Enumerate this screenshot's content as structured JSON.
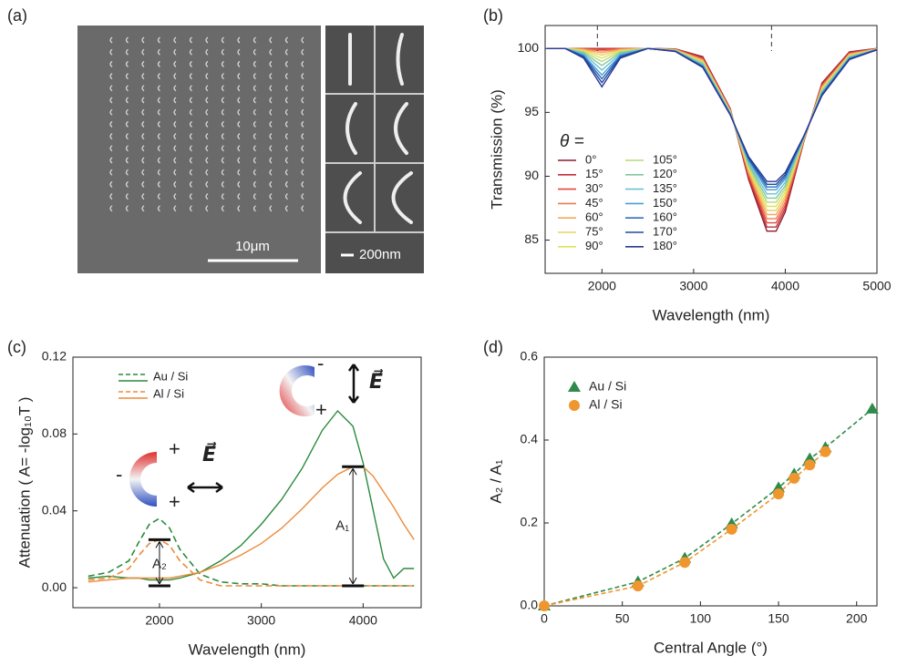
{
  "panel_labels": [
    "(a)",
    "(b)",
    "(c)",
    "(d)"
  ],
  "image_panel": {
    "scale_bar_main": "10μm",
    "scale_bar_inset": "200nm"
  },
  "chart_data": [
    {
      "type": "line",
      "xlabel": "Wavelength (nm)",
      "ylabel": "Transmission (%)",
      "legend_title": "θ =",
      "x": [
        1400,
        1600,
        1800,
        2000,
        2200,
        2500,
        2800,
        3100,
        3400,
        3600,
        3800,
        3900,
        4000,
        4200,
        4400,
        4700,
        5000
      ],
      "xlim": [
        1380,
        5000
      ],
      "xticks": [
        2000,
        3000,
        4000,
        5000
      ],
      "ylim": [
        82.4,
        101.8
      ],
      "yticks": [
        85,
        90,
        95,
        100
      ],
      "reference_lines_x": [
        1950,
        3850
      ],
      "series": [
        {
          "name": "0°",
          "color": "#8e1b2e",
          "values": [
            100,
            100,
            100,
            100,
            100,
            100,
            99.97,
            99.36,
            95.29,
            89.75,
            85.7,
            85.7,
            87.21,
            92.66,
            97.3,
            99.74,
            100
          ]
        },
        {
          "name": "15°",
          "color": "#c0303a",
          "values": [
            100,
            100,
            99.99,
            99.98,
            99.99,
            100,
            99.95,
            99.29,
            95.25,
            89.9,
            86.02,
            86.02,
            87.47,
            92.7,
            97.22,
            99.69,
            99.99
          ]
        },
        {
          "name": "30°",
          "color": "#e2463e",
          "values": [
            100,
            100,
            99.98,
            99.92,
            99.98,
            100,
            99.94,
            99.22,
            95.21,
            90.05,
            86.35,
            86.35,
            87.72,
            92.74,
            97.13,
            99.64,
            99.98
          ]
        },
        {
          "name": "45°",
          "color": "#f07a4c",
          "values": [
            100,
            100,
            99.95,
            99.81,
            99.95,
            100,
            99.92,
            99.15,
            95.16,
            90.2,
            86.67,
            86.67,
            87.98,
            92.78,
            97.05,
            99.59,
            99.97
          ]
        },
        {
          "name": "60°",
          "color": "#f5a95c",
          "values": [
            100,
            100,
            99.92,
            99.67,
            99.92,
            100,
            99.9,
            99.08,
            95.12,
            90.35,
            87,
            87,
            88.24,
            92.82,
            96.97,
            99.54,
            99.96
          ]
        },
        {
          "name": "75°",
          "color": "#ecd062",
          "values": [
            100,
            100,
            99.87,
            99.48,
            99.87,
            100,
            99.89,
            99.01,
            95.08,
            90.5,
            87.32,
            87.32,
            88.49,
            92.86,
            96.89,
            99.49,
            99.95
          ]
        },
        {
          "name": "90°",
          "color": "#dce45a",
          "values": [
            100,
            100,
            99.81,
            99.25,
            99.81,
            100,
            99.87,
            98.93,
            95.04,
            90.64,
            87.64,
            87.64,
            88.75,
            92.9,
            96.81,
            99.44,
            99.95
          ]
        },
        {
          "name": "105°",
          "color": "#b6d87a",
          "values": [
            100,
            100,
            99.74,
            98.98,
            99.74,
            100,
            99.85,
            98.86,
            95,
            90.79,
            87.97,
            87.97,
            89.01,
            92.93,
            96.72,
            99.39,
            99.94
          ]
        },
        {
          "name": "120°",
          "color": "#7fc8a2",
          "values": [
            100,
            100,
            99.67,
            98.67,
            99.67,
            100,
            99.84,
            98.79,
            94.96,
            90.94,
            88.29,
            88.29,
            89.26,
            92.97,
            96.64,
            99.34,
            99.93
          ]
        },
        {
          "name": "135°",
          "color": "#6cc0d2",
          "values": [
            100,
            100,
            99.58,
            98.31,
            99.58,
            100,
            99.82,
            98.72,
            94.91,
            91.09,
            88.62,
            88.62,
            89.52,
            93.01,
            96.56,
            99.29,
            99.92
          ]
        },
        {
          "name": "150°",
          "color": "#4c9fd8",
          "values": [
            100,
            100,
            99.48,
            97.92,
            99.48,
            100,
            99.8,
            98.65,
            94.87,
            91.24,
            88.94,
            88.94,
            89.78,
            93.05,
            96.48,
            99.24,
            99.91
          ]
        },
        {
          "name": "160°",
          "color": "#2f6fc0",
          "values": [
            100,
            100,
            99.41,
            97.63,
            99.41,
            100,
            99.79,
            98.6,
            94.85,
            91.34,
            89.16,
            89.16,
            89.95,
            93.08,
            96.42,
            99.21,
            99.9
          ]
        },
        {
          "name": "170°",
          "color": "#1c4e9e",
          "values": [
            100,
            100,
            99.33,
            97.33,
            99.33,
            100,
            99.78,
            98.56,
            94.82,
            91.44,
            89.37,
            89.37,
            90.12,
            93.1,
            96.37,
            99.17,
            99.9
          ]
        },
        {
          "name": "180°",
          "color": "#2b3896",
          "values": [
            100,
            100,
            99.25,
            97,
            99.25,
            100,
            99.77,
            98.51,
            94.79,
            91.54,
            89.59,
            89.59,
            90.29,
            93.13,
            96.31,
            99.14,
            99.89
          ]
        }
      ]
    },
    {
      "type": "line",
      "xlabel": "Wavelength (nm)",
      "ylabel": "Attenuation ( A= -log₁₀T )",
      "x": [
        1300,
        1500,
        1700,
        1800,
        1900,
        2000,
        2100,
        2200,
        2400,
        2600,
        2800,
        3000,
        3200,
        3400,
        3600,
        3750,
        3900,
        4000,
        4100,
        4200,
        4300,
        4400,
        4500
      ],
      "xlim": [
        1150,
        4570
      ],
      "xticks": [
        2000,
        3000,
        4000
      ],
      "ylim": [
        -0.0104,
        0.12
      ],
      "yticks": [
        {
          "value": 0,
          "label": "0.00"
        },
        0.04,
        0.08,
        0.12
      ],
      "series": [
        {
          "name": "Au / Si",
          "color": "#2a8a3c",
          "values_dashed": [
            0.006,
            0.008,
            0.014,
            0.024,
            0.033,
            0.036,
            0.031,
            0.02,
            0.007,
            0.003,
            0.002,
            0.002,
            0.001,
            0.001,
            0.001,
            0.001,
            0.001,
            0.001,
            0.001,
            0.001,
            0.001,
            0.001,
            0.001
          ],
          "values_solid": [
            0.005,
            0.006,
            0.005,
            0.005,
            0.004,
            0.004,
            0.004,
            0.005,
            0.008,
            0.014,
            0.022,
            0.033,
            0.046,
            0.062,
            0.082,
            0.092,
            0.084,
            0.065,
            0.04,
            0.015,
            0.005,
            0.01,
            0.01
          ]
        },
        {
          "name": "Al / Si",
          "color": "#ee8a3a",
          "values_dashed": [
            0.004,
            0.005,
            0.01,
            0.017,
            0.023,
            0.025,
            0.022,
            0.014,
            0.004,
            0.001,
            0.001,
            0.001,
            0.001,
            0.001,
            0.001,
            0.001,
            0.001,
            0.001,
            0.001,
            0.001,
            0.001,
            0.001,
            0.001
          ],
          "values_solid": [
            0.003,
            0.004,
            0.005,
            0.005,
            0.005,
            0.005,
            0.005,
            0.006,
            0.008,
            0.012,
            0.017,
            0.023,
            0.031,
            0.041,
            0.052,
            0.059,
            0.063,
            0.063,
            0.058,
            0.05,
            0.042,
            0.033,
            0.025
          ]
        }
      ],
      "brackets": [
        {
          "label": "A₂",
          "x": 2000,
          "y": [
            0.001,
            0.025
          ]
        },
        {
          "label": "A₁",
          "x": 3900,
          "y": [
            0.001,
            0.063
          ]
        }
      ],
      "icon_labels": {
        "plus": "+",
        "minus": "-",
        "field": "E⃗"
      }
    },
    {
      "type": "scatter",
      "xlabel": "Central Angle (°)",
      "ylabel": "A₂ / A₁",
      "xlim": [
        0,
        213
      ],
      "xticks": [
        0,
        50,
        100,
        150,
        200
      ],
      "ylim": [
        0,
        0.6
      ],
      "yticks": [
        {
          "value": 0,
          "label": "0.0"
        },
        0.2,
        0.4,
        0.6
      ],
      "fit_lines": true,
      "series": [
        {
          "name": "Au / Si",
          "color": "#2e8b4a",
          "marker": "triangle",
          "x": [
            0,
            60,
            90,
            120,
            150,
            160,
            170,
            180,
            210
          ],
          "values": [
            0,
            0.058,
            0.115,
            0.198,
            0.285,
            0.318,
            0.355,
            0.382,
            0.475
          ]
        },
        {
          "name": "Al / Si",
          "color": "#f0962e",
          "marker": "circle",
          "x": [
            0,
            60,
            90,
            120,
            150,
            160,
            170,
            180
          ],
          "values": [
            0,
            0.048,
            0.105,
            0.185,
            0.27,
            0.308,
            0.34,
            0.372
          ]
        }
      ]
    }
  ]
}
